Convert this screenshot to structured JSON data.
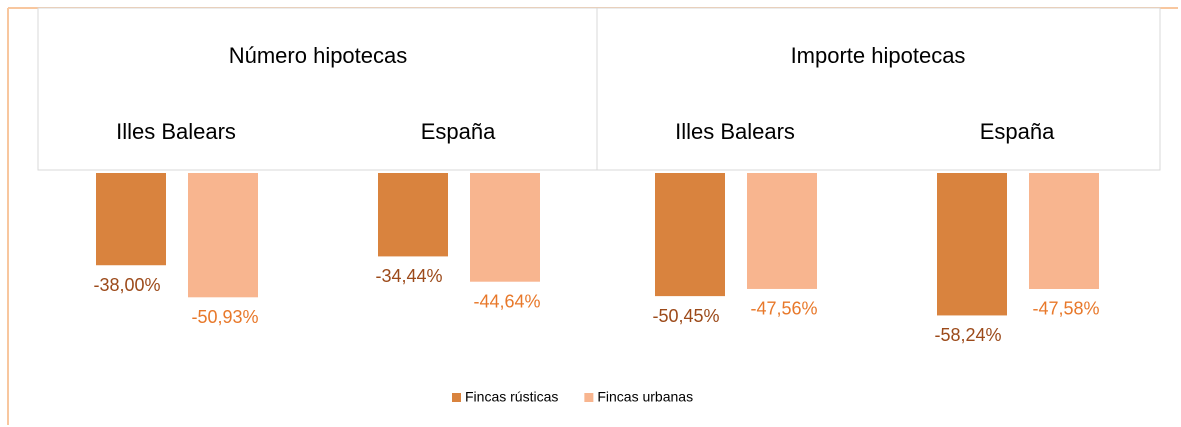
{
  "chart_data": {
    "type": "bar",
    "groups": [
      "Número hipotecas",
      "Importe hipotecas"
    ],
    "categories": [
      "Illes Balears",
      "España",
      "Illes Balears",
      "España"
    ],
    "series": [
      {
        "name": "Fincas rústicas",
        "color": "#D9833E",
        "label_color": "#9C4A1A",
        "values": [
          -38.0,
          -34.44,
          -50.45,
          -58.24
        ],
        "value_labels": [
          "-38,00%",
          "-34,44%",
          "-50,45%",
          "-58,24%"
        ]
      },
      {
        "name": "Fincas urbanas",
        "color": "#F8B58F",
        "label_color": "#E8782A",
        "values": [
          -50.93,
          -44.64,
          -47.56,
          -47.58
        ],
        "value_labels": [
          "-50,93%",
          "-44,64%",
          "-47,56%",
          "-47,58%"
        ]
      }
    ],
    "legend": "bottom"
  }
}
